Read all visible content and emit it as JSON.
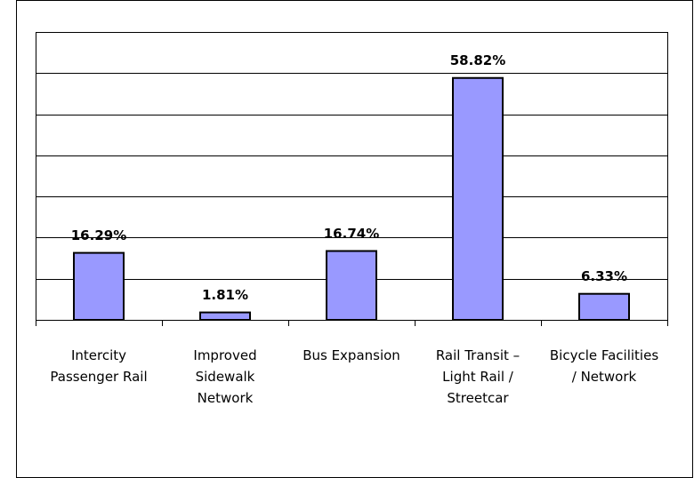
{
  "chart_data": {
    "type": "bar",
    "categories": [
      "Intercity Passenger Rail",
      "Improved Sidewalk Network",
      "Bus Expansion",
      "Rail Transit – Light Rail / Streetcar",
      "Bicycle Facilities / Network"
    ],
    "values": [
      16.29,
      1.81,
      16.74,
      58.82,
      6.33
    ],
    "value_labels": [
      "16.29%",
      "1.81%",
      "16.74%",
      "58.82%",
      "6.33%"
    ],
    "color": "#9999ff",
    "ylim": [
      0,
      70
    ],
    "yticks": [
      0,
      10,
      20,
      30,
      40,
      50,
      60,
      70
    ],
    "grid": true
  }
}
